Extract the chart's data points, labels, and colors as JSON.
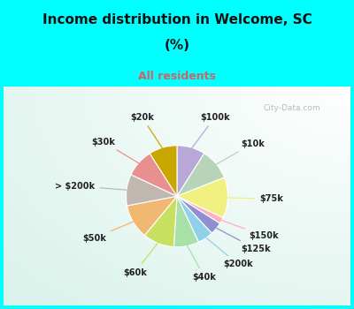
{
  "title_line1": "Income distribution in Welcome, SC",
  "title_line2": "(%)",
  "subtitle": "All residents",
  "title_color": "#111111",
  "subtitle_color": "#cc6666",
  "background_color": "#00ffff",
  "watermark": "City-Data.com",
  "labels": [
    "$100k",
    "$10k",
    "$75k",
    "$150k",
    "$125k",
    "$200k",
    "$40k",
    "$60k",
    "$50k",
    "> $200k",
    "$30k",
    "$20k"
  ],
  "values": [
    9,
    10,
    13,
    2,
    4,
    5,
    8,
    10,
    11,
    10,
    9,
    9
  ],
  "colors": [
    "#b8a8d8",
    "#b8d4b8",
    "#f0f080",
    "#ffb0c0",
    "#9090d0",
    "#90d0e8",
    "#a8e0a8",
    "#c8e060",
    "#f0b870",
    "#c0b8b0",
    "#e89090",
    "#c8a800"
  ],
  "start_angle": 90
}
